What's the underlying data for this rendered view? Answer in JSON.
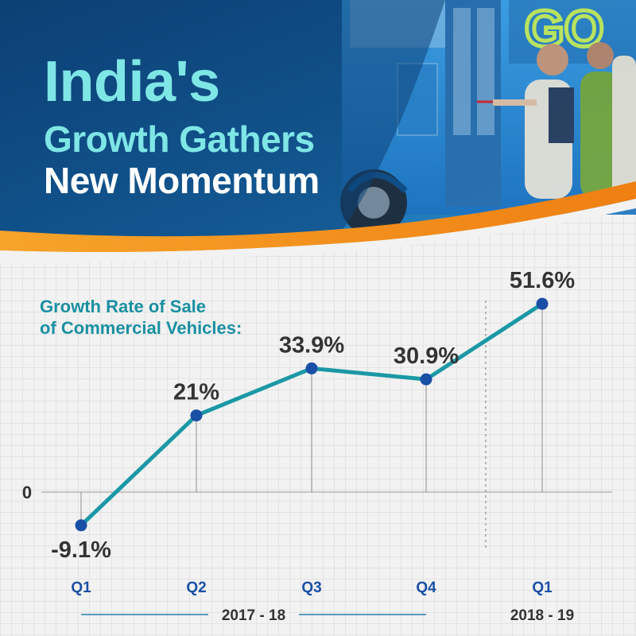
{
  "header": {
    "title_line1": "India's",
    "title_line2": "Growth Gathers",
    "title_line3": "New Momentum",
    "photo_sign_text": "GO"
  },
  "colors": {
    "header_blue": "#1f86c6",
    "header_dark": "#0b3c6e",
    "title_cyan": "#7fe6e6",
    "orange_wave": "#f39419",
    "line_teal": "#1b98a6",
    "point_blue": "#1a4fa6",
    "axis_label_blue": "#1a4fa6",
    "text_dark": "#333333"
  },
  "chart_data": {
    "type": "line",
    "title": "Growth Rate of Sale of Commercial Vehicles:",
    "title_lines": [
      "Growth Rate of Sale",
      "of Commercial Vehicles:"
    ],
    "categories": [
      "Q1",
      "Q2",
      "Q3",
      "Q4",
      "Q1"
    ],
    "values": [
      -9.1,
      21,
      33.9,
      30.9,
      51.6
    ],
    "data_labels": [
      "-9.1%",
      "21%",
      "33.9%",
      "30.9%",
      "51.6%"
    ],
    "unit": "%",
    "zero_label": "0",
    "groups": [
      {
        "label": "2017 - 18",
        "categories": [
          0,
          1,
          2,
          3
        ]
      },
      {
        "label": "2018 - 19",
        "categories": [
          4
        ]
      }
    ],
    "grid": true,
    "legend": "none"
  }
}
